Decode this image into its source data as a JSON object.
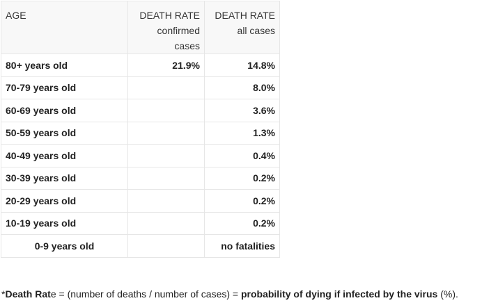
{
  "table": {
    "headers": {
      "age": "AGE",
      "confirmed_line1": "DEATH RATE",
      "confirmed_line2": "confirmed",
      "confirmed_line3": "cases",
      "all_line1": "DEATH RATE",
      "all_line2": "all cases"
    },
    "rows": [
      {
        "age": "80+ years old",
        "confirmed": "21.9%",
        "all": "14.8%"
      },
      {
        "age": "70-79 years old",
        "confirmed": "",
        "all": "8.0%"
      },
      {
        "age": "60-69 years old",
        "confirmed": "",
        "all": "3.6%"
      },
      {
        "age": "50-59 years old",
        "confirmed": "",
        "all": "1.3%"
      },
      {
        "age": "40-49 years old",
        "confirmed": "",
        "all": "0.4%"
      },
      {
        "age": "30-39 years old",
        "confirmed": "",
        "all": "0.2%"
      },
      {
        "age": "20-29 years old",
        "confirmed": "",
        "all": "0.2%"
      },
      {
        "age": "10-19 years old",
        "confirmed": "",
        "all": "0.2%"
      },
      {
        "age": "0-9 years old",
        "confirmed": "",
        "all": "no fatalities"
      }
    ]
  },
  "footnote": {
    "star": "*",
    "term_bold_1": "Death Rat",
    "term_plain": "e",
    "middle": " = (number of deaths / number of cases) = ",
    "emphasis": "probability of dying if infected by the virus",
    "tail": " (%)."
  }
}
